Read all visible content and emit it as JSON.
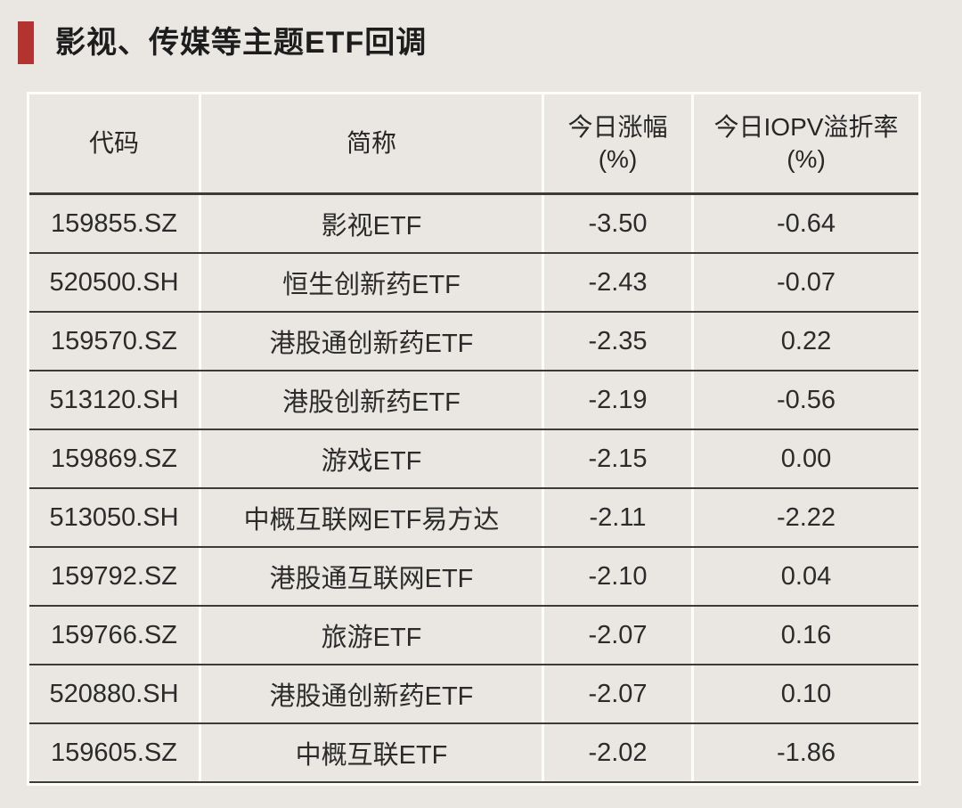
{
  "page": {
    "background_color": "#eae7e2",
    "grid_line_light_color": "#fdfdfa",
    "grid_line_dark_color": "#3b3b38",
    "text_color": "#2b2b2b"
  },
  "title": {
    "text": "影视、传媒等主题ETF回调",
    "accent_color": "#b43230"
  },
  "table": {
    "columns": [
      {
        "label": "代码",
        "unit": ""
      },
      {
        "label": "简称",
        "unit": ""
      },
      {
        "label": "今日涨幅",
        "unit": "(%)"
      },
      {
        "label": "今日IOPV溢折率",
        "unit": "(%)"
      }
    ],
    "rows": [
      {
        "code": "159855.SZ",
        "name": "影视ETF",
        "change": "-3.50",
        "iopv": "-0.64"
      },
      {
        "code": "520500.SH",
        "name": "恒生创新药ETF",
        "change": "-2.43",
        "iopv": "-0.07"
      },
      {
        "code": "159570.SZ",
        "name": "港股通创新药ETF",
        "change": "-2.35",
        "iopv": "0.22"
      },
      {
        "code": "513120.SH",
        "name": "港股创新药ETF",
        "change": "-2.19",
        "iopv": "-0.56"
      },
      {
        "code": "159869.SZ",
        "name": "游戏ETF",
        "change": "-2.15",
        "iopv": "0.00"
      },
      {
        "code": "513050.SH",
        "name": "中概互联网ETF易方达",
        "change": "-2.11",
        "iopv": "-2.22"
      },
      {
        "code": "159792.SZ",
        "name": "港股通互联网ETF",
        "change": "-2.10",
        "iopv": "0.04"
      },
      {
        "code": "159766.SZ",
        "name": "旅游ETF",
        "change": "-2.07",
        "iopv": "0.16"
      },
      {
        "code": "520880.SH",
        "name": "港股通创新药ETF",
        "change": "-2.07",
        "iopv": "0.10"
      },
      {
        "code": "159605.SZ",
        "name": "中概互联ETF",
        "change": "-2.02",
        "iopv": "-1.86"
      }
    ]
  },
  "chart_data": {
    "type": "table",
    "title": "影视、传媒等主题ETF回调",
    "columns": [
      "代码",
      "简称",
      "今日涨幅(%)",
      "今日IOPV溢折率(%)"
    ],
    "rows": [
      [
        "159855.SZ",
        "影视ETF",
        -3.5,
        -0.64
      ],
      [
        "520500.SH",
        "恒生创新药ETF",
        -2.43,
        -0.07
      ],
      [
        "159570.SZ",
        "港股通创新药ETF",
        -2.35,
        0.22
      ],
      [
        "513120.SH",
        "港股创新药ETF",
        -2.19,
        -0.56
      ],
      [
        "159869.SZ",
        "游戏ETF",
        -2.15,
        0.0
      ],
      [
        "513050.SH",
        "中概互联网ETF易方达",
        -2.11,
        -2.22
      ],
      [
        "159792.SZ",
        "港股通互联网ETF",
        -2.1,
        0.04
      ],
      [
        "159766.SZ",
        "旅游ETF",
        -2.07,
        0.16
      ],
      [
        "520880.SH",
        "港股通创新药ETF",
        -2.07,
        0.1
      ],
      [
        "159605.SZ",
        "中概互联ETF",
        -2.02,
        -1.86
      ]
    ]
  }
}
